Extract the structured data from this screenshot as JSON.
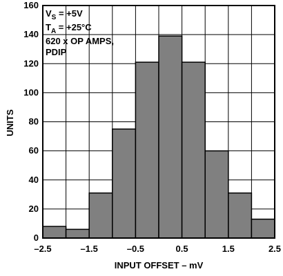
{
  "chart_data": {
    "type": "bar",
    "xlabel": "INPUT OFFSET – mV",
    "ylabel": "UNITS",
    "xlim": [
      -2.5,
      2.5
    ],
    "ylim": [
      0,
      160
    ],
    "bin_width": 0.5,
    "bin_starts": [
      -2.5,
      -2.0,
      -1.5,
      -1.0,
      -0.5,
      0.0,
      0.5,
      1.0,
      1.5,
      2.0
    ],
    "values": [
      8,
      6,
      31,
      75,
      121,
      139,
      121,
      60,
      31,
      13
    ],
    "x_ticks": [
      -2.5,
      -2.0,
      -1.5,
      -1.0,
      -0.5,
      0.0,
      0.5,
      1.0,
      1.5,
      2.0,
      2.5
    ],
    "x_tick_labels": [
      "–2.5",
      "",
      "–1.5",
      "",
      "–0.5",
      "",
      "0.5",
      "",
      "1.5",
      "",
      "2.5"
    ],
    "y_ticks": [
      0,
      20,
      40,
      60,
      80,
      100,
      120,
      140,
      160
    ],
    "y_tick_labels": [
      "0",
      "20",
      "40",
      "60",
      "80",
      "100",
      "120",
      "140",
      "160"
    ],
    "grid": true,
    "bar_color": "#808080",
    "annotation": {
      "vs_main": "V",
      "vs_sub": "S",
      "vs_value": " = +5V",
      "ta_main": "T",
      "ta_sub": "A",
      "ta_value": " = +25°C",
      "line3": "620 x OP AMPS,",
      "line4": "PDIP"
    }
  }
}
